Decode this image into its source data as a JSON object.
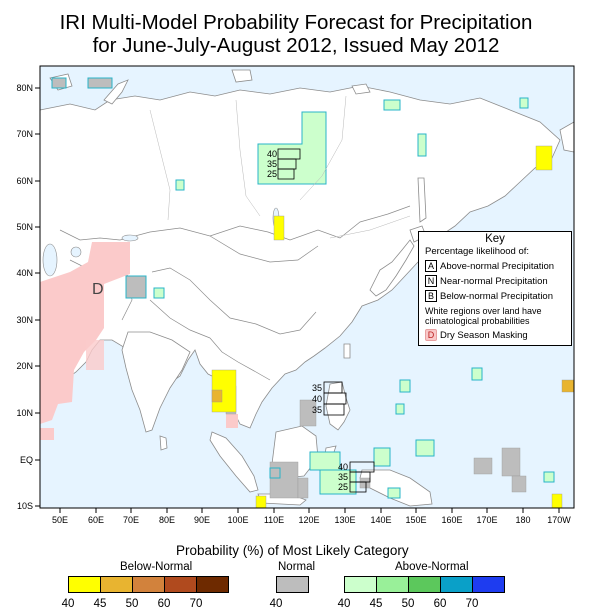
{
  "title": {
    "line1": "IRI Multi-Model Probability Forecast for Precipitation",
    "line2": "for June-July-August 2012, Issued May 2012"
  },
  "lat_labels": [
    "80N",
    "70N",
    "60N",
    "50N",
    "40N",
    "30N",
    "20N",
    "10N",
    "EQ",
    "10S"
  ],
  "lon_labels": [
    "50E",
    "60E",
    "70E",
    "80E",
    "90E",
    "100E",
    "110E",
    "120E",
    "130E",
    "140E",
    "150E",
    "160E",
    "170E",
    "180",
    "170W"
  ],
  "map_annotations": {
    "dry_mask_letter": "D",
    "siberia_box": [
      "40",
      "35",
      "25"
    ],
    "philippines_box": [
      "35",
      "40",
      "35"
    ],
    "indonesia_box": [
      "40",
      "35",
      "25"
    ]
  },
  "key": {
    "title": "Key",
    "subtitle": "Percentage likelihood of:",
    "items": [
      {
        "letter": "A",
        "text": "Above-normal Precipitation"
      },
      {
        "letter": "N",
        "text": "Near-normal Precipitation"
      },
      {
        "letter": "B",
        "text": "Below-normal Precipitation"
      }
    ],
    "white_note": "White regions over land have climatological probabilities",
    "dry_letter": "D",
    "dry_text": "Dry Season Masking"
  },
  "legend": {
    "heading": "Probability (%) of Most Likely Category",
    "below": {
      "label": "Below-Normal",
      "ticks": [
        "40",
        "45",
        "50",
        "60",
        "70"
      ],
      "colors": [
        "#ffff00",
        "#e8b430",
        "#d2823c",
        "#b04a1e",
        "#6e2a00"
      ]
    },
    "normal": {
      "label": "Normal",
      "ticks": [
        "40"
      ],
      "colors": [
        "#bdbdbd"
      ]
    },
    "above": {
      "label": "Above-Normal",
      "ticks": [
        "40",
        "45",
        "50",
        "60",
        "70"
      ],
      "colors": [
        "#ccffcc",
        "#99f099",
        "#5cc85c",
        "#0aa0c8",
        "#1e3cf0"
      ]
    }
  },
  "colors": {
    "ocean": "#e6f4ff",
    "dry_mask": "#fbcaca",
    "normal": "#bdbdbd",
    "above_40": "#ccffcc",
    "below_40": "#ffff00",
    "above_border": "#28b4c8"
  }
}
